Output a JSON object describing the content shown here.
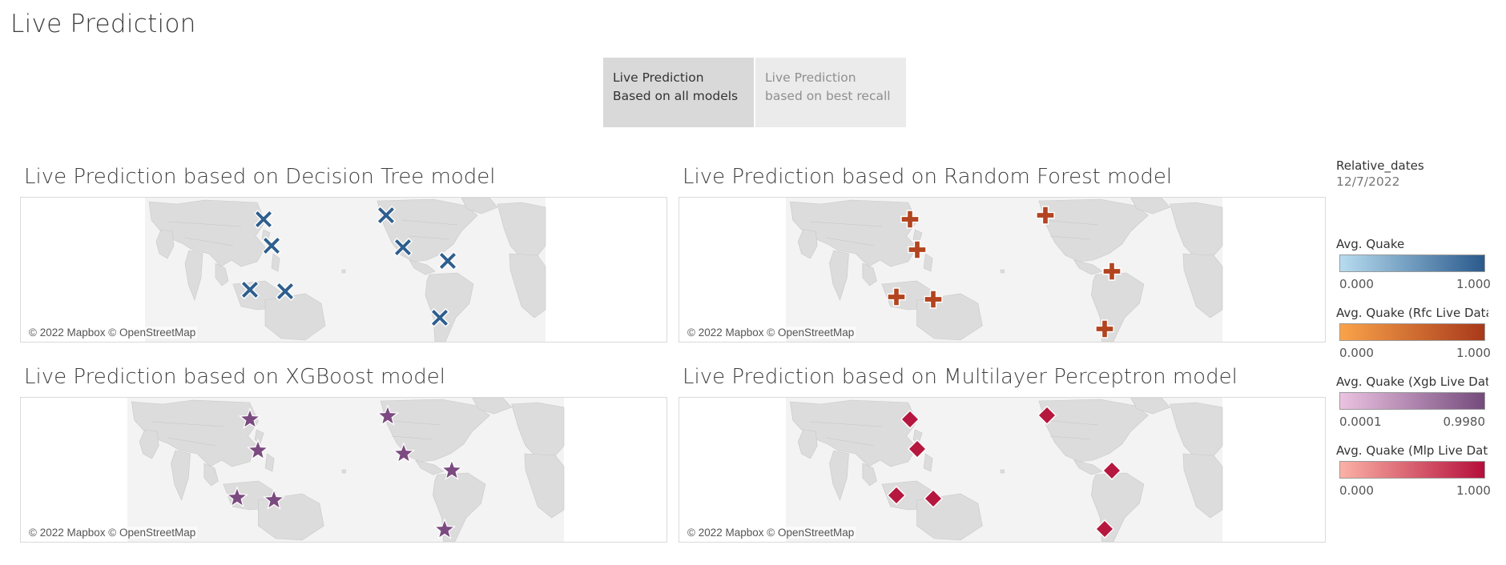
{
  "page": {
    "title": "Live Prediction"
  },
  "tabs": [
    {
      "label": "Live Prediction Based on all models",
      "active": true
    },
    {
      "label": "Live Prediction based on best recall",
      "active": false
    }
  ],
  "maps": [
    {
      "title": "Live Prediction based on Decision Tree model",
      "marker": "cross-x",
      "color": "#2e5f8e",
      "attribution": "© 2022 Mapbox © OpenStreetMap"
    },
    {
      "title": "Live Prediction based on Random Forest model",
      "marker": "plus",
      "color": "#b2441f",
      "attribution": "© 2022 Mapbox © OpenStreetMap"
    },
    {
      "title": "Live Prediction based on XGBoost model",
      "marker": "star",
      "color": "#7b4a80",
      "attribution": "© 2022 Mapbox © OpenStreetMap"
    },
    {
      "title": "Live Prediction based on Multilayer Perceptron model",
      "marker": "diamond",
      "color": "#b5173e",
      "attribution": "© 2022 Mapbox © OpenStreetMap"
    }
  ],
  "legend": {
    "relative_dates": {
      "title": "Relative_dates",
      "value": "12/7/2022"
    },
    "ramps": [
      {
        "title": "Avg. Quake",
        "min": "0.000",
        "max": "1.000",
        "from": "#b7dcf0",
        "to": "#2a5a8c"
      },
      {
        "title": "Avg. Quake (Rfc Live Data..",
        "min": "0.000",
        "max": "1.000",
        "from": "#f9a34a",
        "to": "#a8391b"
      },
      {
        "title": "Avg. Quake (Xgb Live Dat..",
        "min": "0.0001",
        "max": "0.9980",
        "from": "#ecc2e2",
        "to": "#744b7c"
      },
      {
        "title": "Avg. Quake (Mlp Live Dat..",
        "min": "0.000",
        "max": "1.000",
        "from": "#fbb1a6",
        "to": "#b50f3a"
      }
    ]
  }
}
